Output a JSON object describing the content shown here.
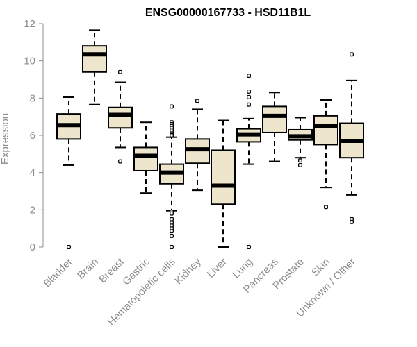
{
  "chart_data": {
    "type": "boxplot",
    "title": "ENSG00000167733 - HSD11B1L",
    "xlabel": "",
    "ylabel": "Expression",
    "ylim": [
      0,
      12
    ],
    "yticks": [
      0,
      2,
      4,
      6,
      8,
      10,
      12
    ],
    "grid": false,
    "legend": "none",
    "box_fill": "#ede6cd",
    "box_stroke": "#000000",
    "categories": [
      "Bladder",
      "Brain",
      "Breast",
      "Gastric",
      "Hematopoietic cells",
      "Kidney",
      "Liver",
      "Lung",
      "Pancreas",
      "Prostate",
      "Skin",
      "Unknown / Other"
    ],
    "boxes": [
      {
        "category": "Bladder",
        "min": 4.4,
        "q1": 5.8,
        "median": 6.55,
        "q3": 7.15,
        "max": 8.05,
        "outliers": [
          0.0
        ]
      },
      {
        "category": "Brain",
        "min": 7.65,
        "q1": 9.4,
        "median": 10.35,
        "q3": 10.8,
        "max": 11.65,
        "outliers": []
      },
      {
        "category": "Breast",
        "min": 5.35,
        "q1": 6.4,
        "median": 7.1,
        "q3": 7.5,
        "max": 8.85,
        "outliers": [
          9.4,
          4.6
        ]
      },
      {
        "category": "Gastric",
        "min": 2.9,
        "q1": 4.1,
        "median": 4.9,
        "q3": 5.35,
        "max": 6.7,
        "outliers": []
      },
      {
        "category": "Hematopoietic cells",
        "min": 1.95,
        "q1": 3.4,
        "median": 4.0,
        "q3": 4.45,
        "max": 5.9,
        "outliers": [
          7.55,
          6.7,
          6.6,
          6.5,
          6.4,
          6.3,
          6.2,
          6.1,
          6.0,
          1.9,
          1.8,
          1.5,
          1.3,
          1.15,
          1.0,
          0.85,
          0.6,
          0.0
        ]
      },
      {
        "category": "Kidney",
        "min": 3.05,
        "q1": 4.5,
        "median": 5.25,
        "q3": 5.8,
        "max": 7.4,
        "outliers": [
          7.85
        ]
      },
      {
        "category": "Liver",
        "min": 0.0,
        "q1": 2.3,
        "median": 3.3,
        "q3": 5.2,
        "max": 6.8,
        "outliers": []
      },
      {
        "category": "Lung",
        "min": 4.45,
        "q1": 5.65,
        "median": 6.05,
        "q3": 6.35,
        "max": 6.9,
        "outliers": [
          9.2,
          8.35,
          8.05,
          7.65,
          0.0
        ]
      },
      {
        "category": "Pancreas",
        "min": 4.6,
        "q1": 6.15,
        "median": 7.05,
        "q3": 7.55,
        "max": 8.3,
        "outliers": []
      },
      {
        "category": "Prostate",
        "min": 4.8,
        "q1": 5.75,
        "median": 5.95,
        "q3": 6.3,
        "max": 6.95,
        "outliers": [
          4.65,
          4.4
        ]
      },
      {
        "category": "Skin",
        "min": 3.2,
        "q1": 5.5,
        "median": 6.5,
        "q3": 7.05,
        "max": 7.9,
        "outliers": [
          2.15
        ]
      },
      {
        "category": "Unknown / Other",
        "min": 2.8,
        "q1": 4.8,
        "median": 5.7,
        "q3": 6.65,
        "max": 8.95,
        "outliers": [
          10.35,
          1.5,
          1.35
        ]
      }
    ]
  }
}
